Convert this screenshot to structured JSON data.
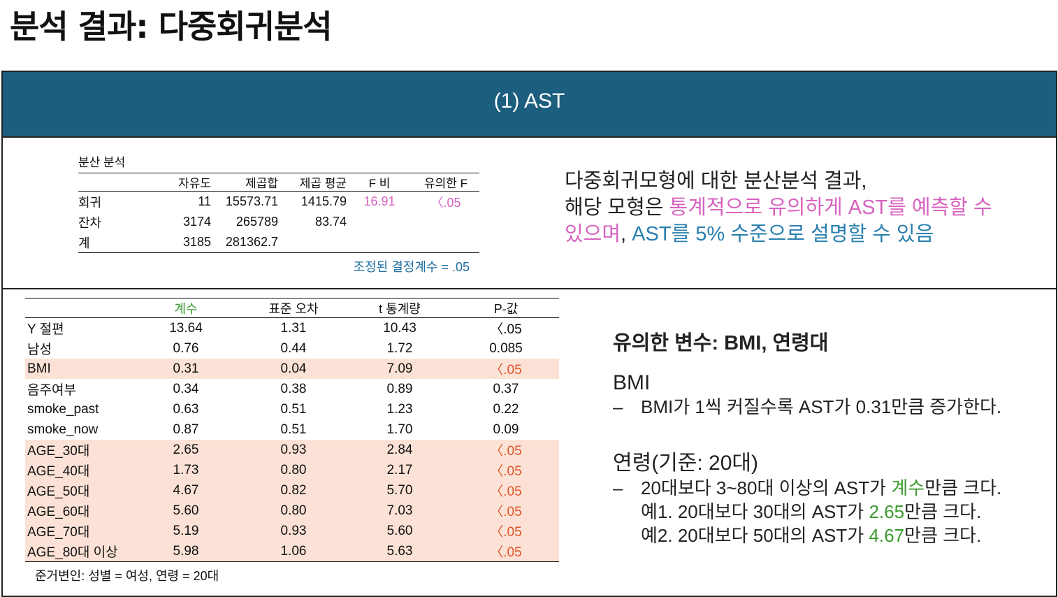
{
  "page_title": "분석 결과: 다중회귀분석",
  "header_title": "(1) AST",
  "anova": {
    "title": "분산 분석",
    "columns": [
      "",
      "자유도",
      "제곱합",
      "제곱 평균",
      "F 비",
      "유의한 F"
    ],
    "rows": [
      {
        "label": "회귀",
        "df": "11",
        "ss": "15573.71",
        "ms": "1415.79",
        "f": "16.91",
        "sig": "〈.05"
      },
      {
        "label": "잔차",
        "df": "3174",
        "ss": "265789",
        "ms": "83.74",
        "f": "",
        "sig": ""
      },
      {
        "label": "계",
        "df": "3185",
        "ss": "281362.7",
        "ms": "",
        "f": "",
        "sig": ""
      }
    ],
    "note": "조정된 결정계수 = .05"
  },
  "summary": {
    "line1": "다중회귀모형에 대한 분산분석 결과,",
    "line2_a": "해당 모형은 ",
    "line2_b": "통계적으로 유의하게 AST를 예측할 수",
    "line3_a": "있으며",
    "line3_b": ", ",
    "line3_c": "AST를 5% 수준으로 설명할 수 있음"
  },
  "coef": {
    "columns": [
      "",
      "계수",
      "표준 오차",
      "t 통계량",
      "P-값"
    ],
    "rows": [
      {
        "label": "Y 절편",
        "coef": "13.64",
        "se": "1.31",
        "t": "10.43",
        "p": "〈.05",
        "sig": false
      },
      {
        "label": "남성",
        "coef": "0.76",
        "se": "0.44",
        "t": "1.72",
        "p": "0.085",
        "sig": false
      },
      {
        "label": "BMI",
        "coef": "0.31",
        "se": "0.04",
        "t": "7.09",
        "p": "〈.05",
        "sig": true
      },
      {
        "label": "음주여부",
        "coef": "0.34",
        "se": "0.38",
        "t": "0.89",
        "p": "0.37",
        "sig": false
      },
      {
        "label": "smoke_past",
        "coef": "0.63",
        "se": "0.51",
        "t": "1.23",
        "p": "0.22",
        "sig": false
      },
      {
        "label": "smoke_now",
        "coef": "0.87",
        "se": "0.51",
        "t": "1.70",
        "p": "0.09",
        "sig": false
      },
      {
        "label": "AGE_30대",
        "coef": "2.65",
        "se": "0.93",
        "t": "2.84",
        "p": "〈.05",
        "sig": true
      },
      {
        "label": "AGE_40대",
        "coef": "1.73",
        "se": "0.80",
        "t": "2.17",
        "p": "〈.05",
        "sig": true
      },
      {
        "label": "AGE_50대",
        "coef": "4.67",
        "se": "0.82",
        "t": "5.70",
        "p": "〈.05",
        "sig": true
      },
      {
        "label": "AGE_60대",
        "coef": "5.60",
        "se": "0.80",
        "t": "7.03",
        "p": "〈.05",
        "sig": true
      },
      {
        "label": "AGE_70대",
        "coef": "5.19",
        "se": "0.93",
        "t": "5.60",
        "p": "〈.05",
        "sig": true
      },
      {
        "label": "AGE_80대 이상",
        "coef": "5.98",
        "se": "1.06",
        "t": "5.63",
        "p": "〈.05",
        "sig": true
      }
    ],
    "note": "준거변인: 성별 = 여성, 연령 = 20대"
  },
  "interpretation": {
    "sig_vars": "유의한 변수: BMI, 연령대",
    "bmi_heading": "BMI",
    "dash": "–",
    "bmi_line": "BMI가 1씩 커질수록 AST가 0.31만큼 증가한다.",
    "age_heading": "연령(기준: 20대)",
    "age_line_a": "20대보다 3~80대 이상의 AST가 ",
    "age_line_b": "계수",
    "age_line_c": "만큼 크다.",
    "ex1_a": "예1. 20대보다 30대의 AST가 ",
    "ex1_b": "2.65",
    "ex1_c": "만큼 크다.",
    "ex2_a": "예2. 20대보다 50대의 AST가 ",
    "ex2_b": "4.67",
    "ex2_c": "만큼 크다."
  },
  "colors": {
    "header_bg": "#1b5e7e",
    "pink": "#d762c0",
    "blue": "#2a7fae",
    "green": "#3a9a2e",
    "sig_row_bg": "#fce2d6",
    "sig_p": "#e0552a"
  }
}
